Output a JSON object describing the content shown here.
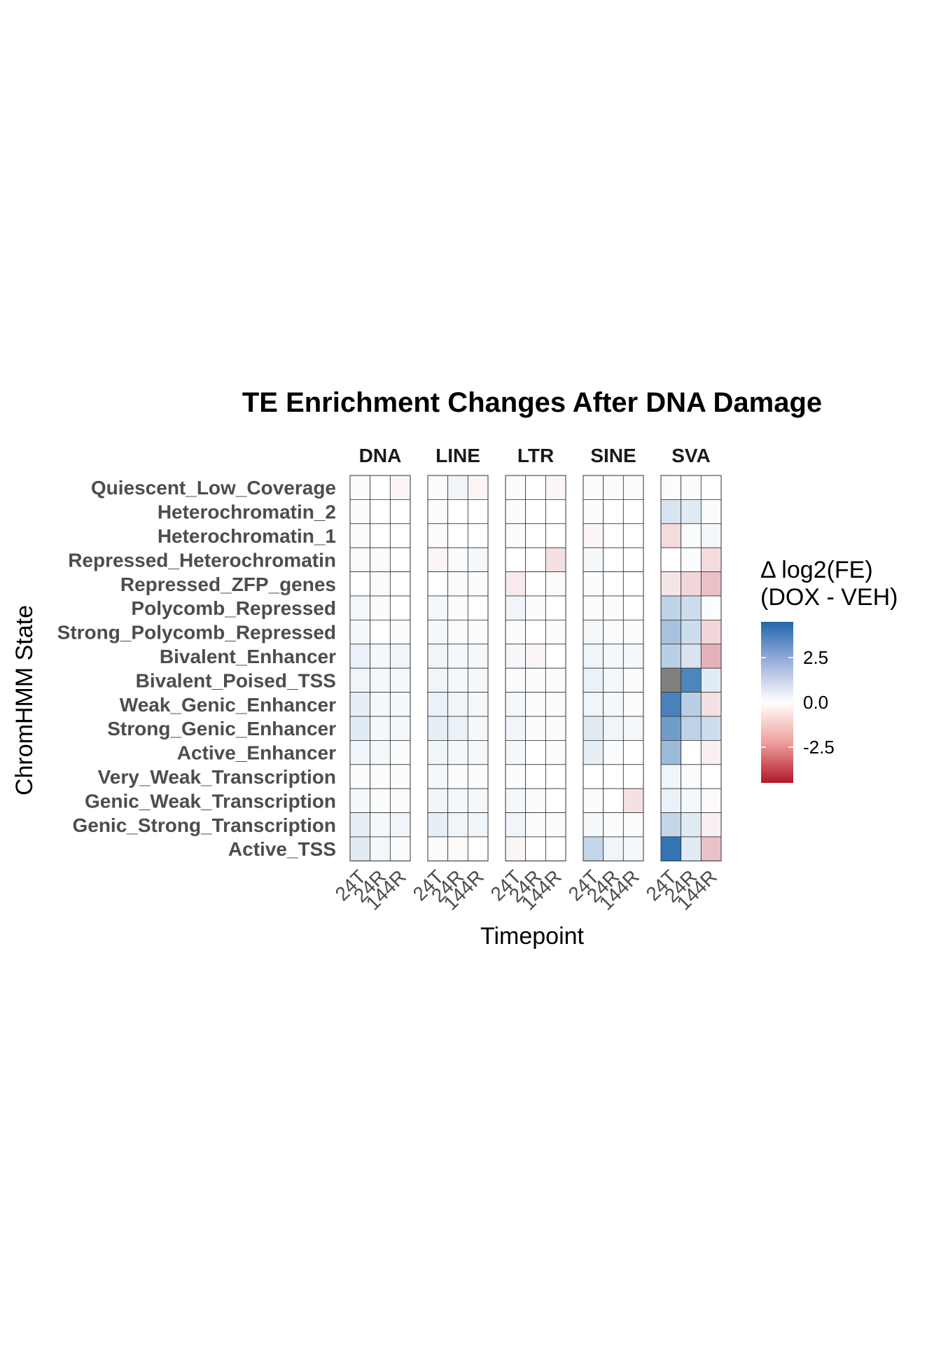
{
  "chart_data": {
    "type": "heatmap",
    "title": "TE Enrichment Changes After DNA Damage",
    "xlabel": "Timepoint",
    "ylabel": "ChromHMM State",
    "x_categories": [
      "24T",
      "24R",
      "144R"
    ],
    "facets": [
      "DNA",
      "LINE",
      "LTR",
      "SINE",
      "SVA"
    ],
    "y_categories": [
      "Quiescent_Low_Coverage",
      "Heterochromatin_2",
      "Heterochromatin_1",
      "Repressed_Heterochromatin",
      "Repressed_ZFP_genes",
      "Polycomb_Repressed",
      "Strong_Polycomb_Repressed",
      "Bivalent_Enhancer",
      "Bivalent_Poised_TSS",
      "Weak_Genic_Enhancer",
      "Strong_Genic_Enhancer",
      "Active_Enhancer",
      "Very_Weak_Transcription",
      "Genic_Weak_Transcription",
      "Genic_Strong_Transcription",
      "Active_TSS"
    ],
    "values": {
      "DNA": [
        [
          0.1,
          0.0,
          -0.2
        ],
        [
          0.1,
          0.0,
          0.0
        ],
        [
          0.1,
          0.0,
          0.0
        ],
        [
          -0.1,
          -0.1,
          0.0
        ],
        [
          0.0,
          -0.1,
          0.0
        ],
        [
          0.2,
          0.1,
          0.0
        ],
        [
          0.2,
          0.0,
          0.1
        ],
        [
          0.4,
          0.2,
          0.3
        ],
        [
          0.3,
          0.2,
          0.2
        ],
        [
          0.5,
          0.2,
          0.2
        ],
        [
          0.6,
          0.2,
          0.2
        ],
        [
          0.3,
          0.2,
          0.1
        ],
        [
          0.1,
          0.1,
          0.1
        ],
        [
          0.2,
          0.1,
          0.1
        ],
        [
          0.5,
          0.2,
          0.3
        ],
        [
          0.6,
          0.2,
          0.1
        ]
      ],
      "LINE": [
        [
          0.1,
          0.3,
          -0.2
        ],
        [
          0.1,
          0.0,
          0.0
        ],
        [
          0.1,
          0.0,
          0.0
        ],
        [
          -0.2,
          0.1,
          0.2
        ],
        [
          0.0,
          0.1,
          0.1
        ],
        [
          0.2,
          0.1,
          0.0
        ],
        [
          0.2,
          0.1,
          0.1
        ],
        [
          0.3,
          0.2,
          0.2
        ],
        [
          0.3,
          0.2,
          0.2
        ],
        [
          0.4,
          0.3,
          0.2
        ],
        [
          0.5,
          0.4,
          0.2
        ],
        [
          0.3,
          0.2,
          0.2
        ],
        [
          0.2,
          0.1,
          0.1
        ],
        [
          0.3,
          0.2,
          0.2
        ],
        [
          0.5,
          0.3,
          0.3
        ],
        [
          0.1,
          -0.1,
          0.0
        ]
      ],
      "LTR": [
        [
          0.1,
          0.0,
          -0.2
        ],
        [
          0.1,
          0.0,
          0.0
        ],
        [
          0.1,
          0.0,
          0.0
        ],
        [
          0.0,
          0.0,
          -0.6
        ],
        [
          -0.4,
          0.0,
          -0.1
        ],
        [
          0.3,
          0.1,
          0.0
        ],
        [
          -0.1,
          0.0,
          0.1
        ],
        [
          0.2,
          -0.2,
          0.0
        ],
        [
          -0.1,
          0.1,
          0.1
        ],
        [
          0.2,
          0.1,
          0.1
        ],
        [
          0.3,
          0.1,
          0.1
        ],
        [
          0.2,
          0.0,
          0.1
        ],
        [
          0.1,
          0.0,
          0.0
        ],
        [
          0.2,
          0.1,
          0.0
        ],
        [
          0.3,
          0.1,
          0.1
        ],
        [
          -0.2,
          0.0,
          0.0
        ]
      ],
      "SINE": [
        [
          0.1,
          0.1,
          0.1
        ],
        [
          0.1,
          0.0,
          0.0
        ],
        [
          -0.2,
          0.0,
          0.0
        ],
        [
          0.2,
          0.0,
          0.0
        ],
        [
          0.1,
          0.0,
          0.0
        ],
        [
          0.1,
          0.1,
          0.0
        ],
        [
          0.2,
          0.1,
          0.1
        ],
        [
          0.3,
          0.2,
          0.2
        ],
        [
          0.4,
          0.2,
          0.1
        ],
        [
          0.3,
          0.2,
          0.1
        ],
        [
          0.6,
          0.3,
          0.2
        ],
        [
          0.5,
          0.1,
          0.0
        ],
        [
          0.0,
          0.0,
          0.0
        ],
        [
          0.1,
          0.0,
          -0.6
        ],
        [
          0.2,
          0.1,
          0.1
        ],
        [
          1.2,
          0.3,
          0.2
        ]
      ],
      "SVA": [
        [
          0.1,
          0.1,
          0.0
        ],
        [
          0.8,
          0.6,
          -0.1
        ],
        [
          -0.7,
          0.1,
          0.2
        ],
        [
          0.0,
          0.1,
          -0.7
        ],
        [
          -0.5,
          -0.8,
          -1.2
        ],
        [
          1.3,
          1.0,
          0.1
        ],
        [
          1.8,
          1.0,
          -0.8
        ],
        [
          1.4,
          0.8,
          -1.5
        ],
        [
          null,
          3.6,
          0.6
        ],
        [
          3.7,
          1.4,
          -0.6
        ],
        [
          2.9,
          1.3,
          1.0
        ],
        [
          2.0,
          0.0,
          -0.3
        ],
        [
          0.3,
          0.1,
          0.0
        ],
        [
          0.4,
          0.2,
          -0.1
        ],
        [
          1.2,
          0.6,
          -0.3
        ],
        [
          4.1,
          0.6,
          -1.2
        ]
      ]
    },
    "na_color": "#808080",
    "color_scale": {
      "low": "#b2182b",
      "mid": "#ffffff",
      "high": "#2166ac",
      "domain": [
        -4.5,
        0,
        4.5
      ]
    },
    "legend": {
      "title_line1": "Δ log2(FE)",
      "title_line2": "(DOX - VEH)",
      "ticks": [
        2.5,
        0.0,
        -2.5
      ],
      "tick_labels": [
        "2.5",
        "0.0",
        "-2.5"
      ],
      "position": "right"
    }
  }
}
